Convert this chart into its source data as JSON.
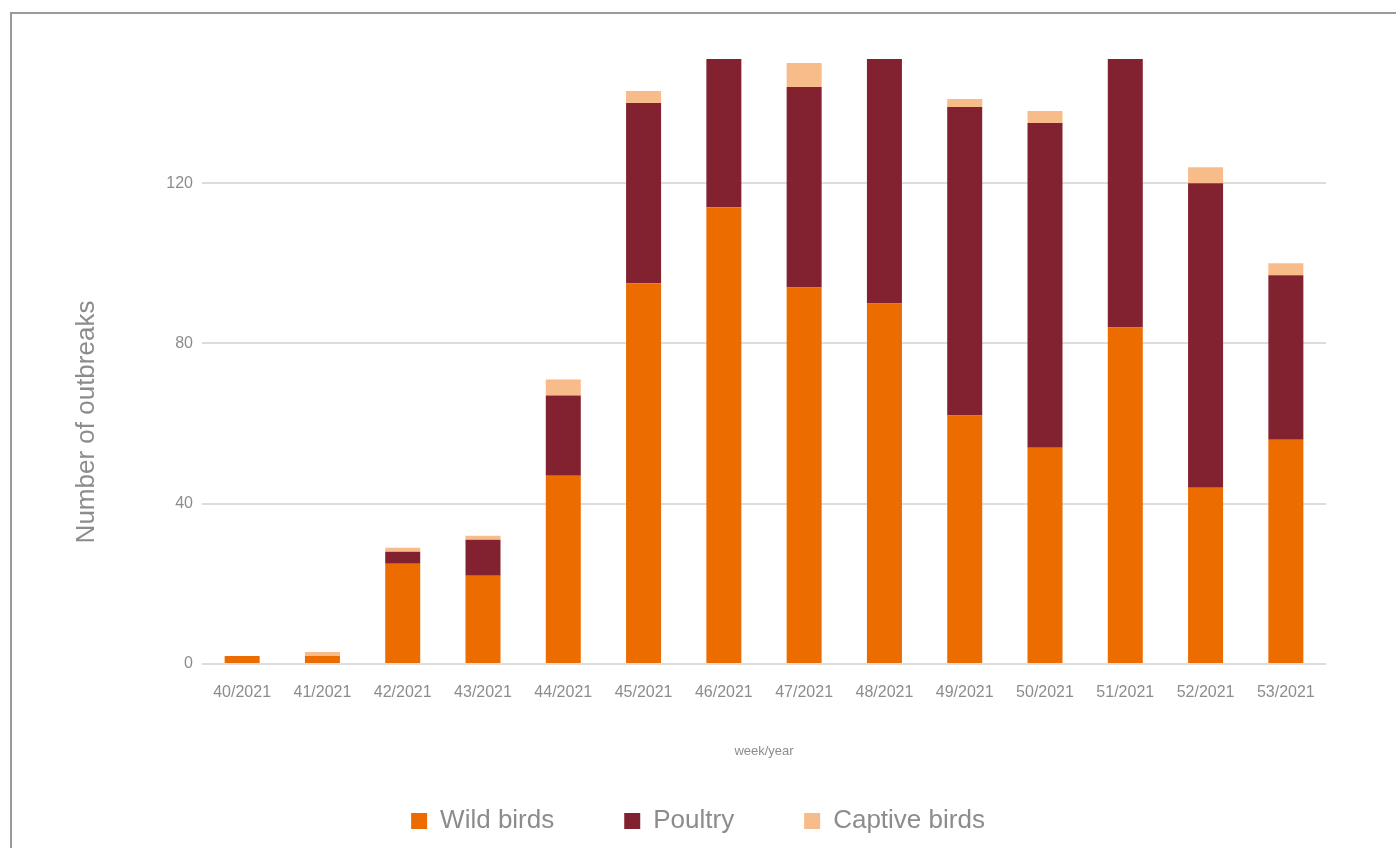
{
  "chart_data": {
    "type": "bar",
    "stacked": true,
    "categories": [
      "40/2021",
      "41/2021",
      "42/2021",
      "43/2021",
      "44/2021",
      "45/2021",
      "46/2021",
      "47/2021",
      "48/2021",
      "49/2021",
      "50/2021",
      "51/2021",
      "52/2021",
      "53/2021"
    ],
    "series": [
      {
        "name": "Wild birds",
        "color": "#ec6c00",
        "values": [
          2,
          2,
          25,
          22,
          47,
          95,
          114,
          94,
          90,
          62,
          54,
          84,
          44,
          56
        ]
      },
      {
        "name": "Poultry",
        "color": "#822231",
        "values": [
          0,
          0,
          3,
          9,
          20,
          45,
          37,
          50,
          61,
          77,
          81,
          67,
          76,
          41
        ]
      },
      {
        "name": "Captive birds",
        "color": "#f8bb8a",
        "values": [
          0,
          1,
          1,
          1,
          4,
          3,
          0,
          6,
          0,
          2,
          3,
          0,
          4,
          3
        ]
      }
    ],
    "ylim": [
      0,
      151
    ],
    "yticks": [
      0,
      40,
      80,
      120
    ],
    "xlabel": "week/year",
    "ylabel": "Number of outbreaks",
    "grid": "y",
    "legend": "bottom"
  }
}
